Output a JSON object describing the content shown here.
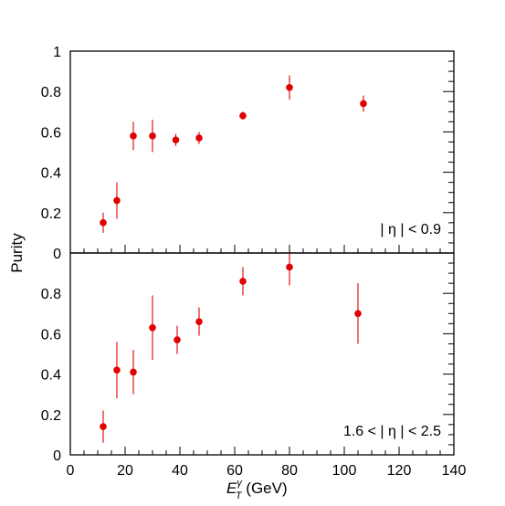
{
  "chart_data": [
    {
      "type": "scatter",
      "panel": "top",
      "annotation": "| η | < 0.9",
      "xlim": [
        0,
        140
      ],
      "ylim": [
        0,
        1
      ],
      "x_ticks": [
        0,
        20,
        40,
        60,
        80,
        100,
        120,
        140
      ],
      "y_ticks": [
        0,
        0.2,
        0.4,
        0.6,
        0.8,
        1
      ],
      "y_tick_labels": [
        "0",
        "0.2",
        "0.4",
        "0.6",
        "0.8",
        "1"
      ],
      "marker_color": "#e00000",
      "points": [
        {
          "x": 12,
          "y": 0.15,
          "err_lo": 0.05,
          "err_hi": 0.05
        },
        {
          "x": 17,
          "y": 0.26,
          "err_lo": 0.09,
          "err_hi": 0.09
        },
        {
          "x": 23,
          "y": 0.58,
          "err_lo": 0.07,
          "err_hi": 0.07
        },
        {
          "x": 30,
          "y": 0.58,
          "err_lo": 0.08,
          "err_hi": 0.08
        },
        {
          "x": 38.5,
          "y": 0.56,
          "err_lo": 0.03,
          "err_hi": 0.03
        },
        {
          "x": 47,
          "y": 0.57,
          "err_lo": 0.03,
          "err_hi": 0.03
        },
        {
          "x": 63,
          "y": 0.68,
          "err_lo": 0.02,
          "err_hi": 0.02
        },
        {
          "x": 80,
          "y": 0.82,
          "err_lo": 0.06,
          "err_hi": 0.06
        },
        {
          "x": 107,
          "y": 0.74,
          "err_lo": 0.04,
          "err_hi": 0.04
        }
      ]
    },
    {
      "type": "scatter",
      "panel": "bottom",
      "annotation": "1.6 < | η | < 2.5",
      "xlim": [
        0,
        140
      ],
      "ylim": [
        0,
        1
      ],
      "x_ticks": [
        0,
        20,
        40,
        60,
        80,
        100,
        120,
        140
      ],
      "x_tick_labels": [
        "0",
        "20",
        "40",
        "60",
        "80",
        "100",
        "120",
        "140"
      ],
      "y_ticks": [
        0,
        0.2,
        0.4,
        0.6,
        0.8
      ],
      "y_tick_labels": [
        "0",
        "0.2",
        "0.4",
        "0.6",
        "0.8"
      ],
      "marker_color": "#e00000",
      "points": [
        {
          "x": 12,
          "y": 0.14,
          "err_lo": 0.08,
          "err_hi": 0.08
        },
        {
          "x": 17,
          "y": 0.42,
          "err_lo": 0.14,
          "err_hi": 0.14
        },
        {
          "x": 23,
          "y": 0.41,
          "err_lo": 0.11,
          "err_hi": 0.11
        },
        {
          "x": 30,
          "y": 0.63,
          "err_lo": 0.16,
          "err_hi": 0.16
        },
        {
          "x": 39,
          "y": 0.57,
          "err_lo": 0.07,
          "err_hi": 0.07
        },
        {
          "x": 47,
          "y": 0.66,
          "err_lo": 0.07,
          "err_hi": 0.07
        },
        {
          "x": 63,
          "y": 0.86,
          "err_lo": 0.07,
          "err_hi": 0.07
        },
        {
          "x": 80,
          "y": 0.93,
          "err_lo": 0.09,
          "err_hi": 0.09
        },
        {
          "x": 105,
          "y": 0.7,
          "err_lo": 0.15,
          "err_hi": 0.15
        }
      ]
    }
  ],
  "axes": {
    "ylabel": "Purity",
    "xlabel_main": "E",
    "xlabel_sup": "γ",
    "xlabel_sub": "T",
    "xlabel_unit": " (GeV)"
  }
}
